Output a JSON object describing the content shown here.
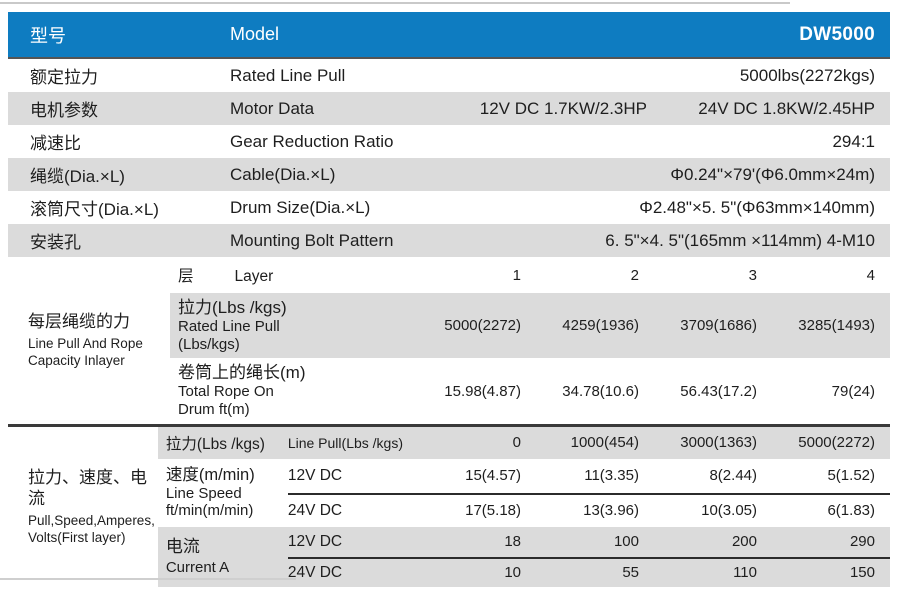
{
  "colors": {
    "header_blue": "#0e7cc1",
    "row_gray": "#dbdbdb"
  },
  "header": {
    "zh": "型号",
    "en": "Model",
    "model": "DW5000"
  },
  "spec_rows": [
    {
      "zh": "额定拉力",
      "en": "Rated Line Pull",
      "values": [
        "5000lbs(2272kgs)"
      ]
    },
    {
      "zh": "电机参数",
      "en": "Motor Data",
      "values": [
        "12V DC 1.7KW/2.3HP",
        "24V DC 1.8KW/2.45HP"
      ]
    },
    {
      "zh": "减速比",
      "en": "Gear Reduction Ratio",
      "values": [
        "294:1"
      ]
    },
    {
      "zh": "绳缆(Dia.×L)",
      "en": "Cable(Dia.×L)",
      "values": [
        "Φ0.24\"×79'(Φ6.0mm×24m)"
      ]
    },
    {
      "zh": "滚筒尺寸(Dia.×L)",
      "en": "Drum Size(Dia.×L)",
      "values": [
        "Φ2.48\"×5. 5\"(Φ63mm×140mm)"
      ]
    },
    {
      "zh": "安装孔",
      "en": "Mounting Bolt Pattern",
      "values": [
        "6. 5\"×4. 5\"(165mm ×114mm) 4-M10"
      ]
    }
  ],
  "layer_section": {
    "label_zh": "每层绳缆的力",
    "label_en1": "Line Pull And Rope",
    "label_en2": "Capacity Inlayer",
    "layer_row": {
      "zh": "层",
      "en": "Layer",
      "cols": [
        "1",
        "2",
        "3",
        "4"
      ]
    },
    "pull_row": {
      "zh": "拉力(Lbs /kgs)",
      "en1": "Rated Line Pull",
      "en2": "(Lbs/kgs)",
      "cols": [
        "5000(2272)",
        "4259(1936)",
        "3709(1686)",
        "3285(1493)"
      ]
    },
    "rope_row": {
      "zh": "卷筒上的绳长(m)",
      "en1": "Total Rope On",
      "en2": "Drum ft(m)",
      "cols": [
        "15.98(4.87)",
        "34.78(10.6)",
        "56.43(17.2)",
        "79(24)"
      ]
    }
  },
  "perf_section": {
    "label_zh": "拉力、速度、电流",
    "label_en1": "Pull,Speed,Amperes,",
    "label_en2": "Volts(First layer)",
    "pull_row": {
      "zh": "拉力(Lbs /kgs)",
      "en": "Line Pull(Lbs /kgs)",
      "cols": [
        "0",
        "1000(454)",
        "3000(1363)",
        "5000(2272)"
      ]
    },
    "speed_group": {
      "zh": "速度(m/min)",
      "en1": "Line Speed",
      "en2": "ft/min(m/min)",
      "rows": [
        {
          "label": "12V DC",
          "cols": [
            "15(4.57)",
            "11(3.35)",
            "8(2.44)",
            "5(1.52)"
          ]
        },
        {
          "label": "24V DC",
          "cols": [
            "17(5.18)",
            "13(3.96)",
            "10(3.05)",
            "6(1.83)"
          ]
        }
      ]
    },
    "current_group": {
      "zh": "电流",
      "en1": "Current  A",
      "rows": [
        {
          "label": "12V DC",
          "cols": [
            "18",
            "100",
            "200",
            "290"
          ]
        },
        {
          "label": "24V DC",
          "cols": [
            "10",
            "55",
            "110",
            "150"
          ]
        }
      ]
    }
  }
}
